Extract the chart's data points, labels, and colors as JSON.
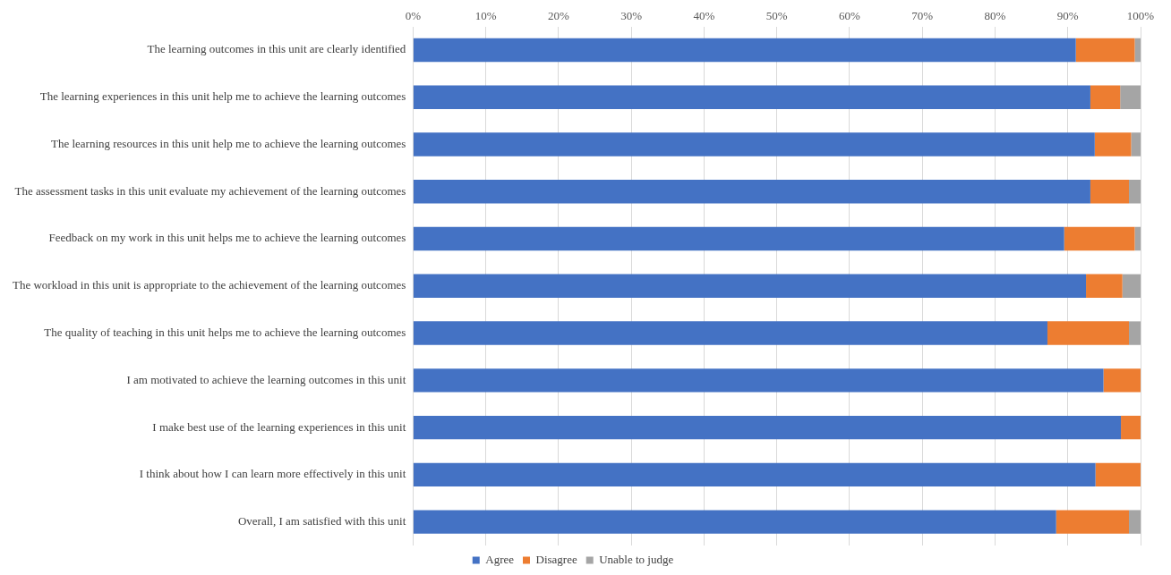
{
  "chart_data": {
    "type": "bar",
    "orientation": "horizontal",
    "stacked": true,
    "categories": [
      "The learning outcomes in this unit are clearly identified",
      "The learning experiences in this unit help me to achieve the learning outcomes",
      "The learning resources in this unit help me to achieve the learning outcomes",
      "The assessment tasks in this unit evaluate my achievement of the learning outcomes",
      "Feedback on my work in this unit helps me to achieve the learning outcomes",
      "The workload in this unit is appropriate to the achievement of the learning outcomes",
      "The quality of teaching in this unit helps me to achieve the learning outcomes",
      "I am motivated to achieve the learning outcomes in this unit",
      "I make best use of the learning experiences in this unit",
      "I think about how I can learn more effectively in this unit",
      "Overall, I am satisfied with this unit"
    ],
    "series": [
      {
        "name": "Agree",
        "color": "#4472c4",
        "values": [
          91.1,
          93.1,
          93.7,
          93.1,
          89.5,
          92.5,
          87.2,
          94.9,
          97.3,
          93.8,
          88.4
        ]
      },
      {
        "name": "Disagree",
        "color": "#ed7d31",
        "values": [
          8.1,
          4.1,
          5.0,
          5.3,
          9.7,
          5.0,
          11.2,
          5.1,
          2.7,
          6.2,
          10.0
        ]
      },
      {
        "name": "Unable to judge",
        "color": "#a5a5a5",
        "values": [
          0.8,
          2.8,
          1.3,
          1.6,
          0.8,
          2.5,
          1.6,
          0,
          0,
          0,
          1.6
        ]
      }
    ],
    "xlim": [
      0,
      100
    ],
    "xticks": [
      {
        "value": 0,
        "label": "0%"
      },
      {
        "value": 10,
        "label": "10%"
      },
      {
        "value": 20,
        "label": "20%"
      },
      {
        "value": 30,
        "label": "30%"
      },
      {
        "value": 40,
        "label": "40%"
      },
      {
        "value": 50,
        "label": "50%"
      },
      {
        "value": 60,
        "label": "60%"
      },
      {
        "value": 70,
        "label": "70%"
      },
      {
        "value": 80,
        "label": "80%"
      },
      {
        "value": 90,
        "label": "90%"
      },
      {
        "value": 100,
        "label": "100%"
      }
    ],
    "grid": "x",
    "legend": "bottom"
  }
}
